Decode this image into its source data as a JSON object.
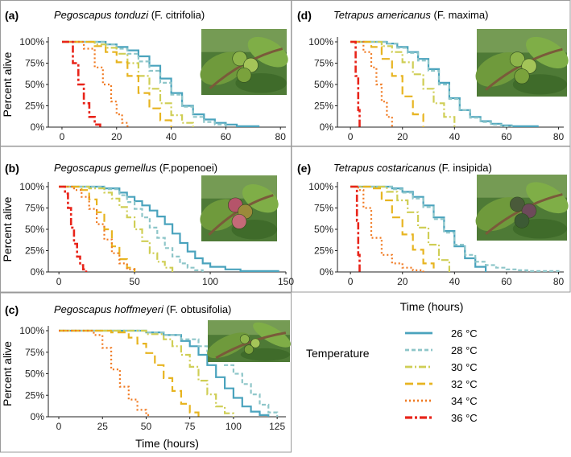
{
  "figure": {
    "legend_title": "Temperature",
    "colors": {
      "26": "#4aa3bd",
      "28": "#8ec6c9",
      "30": "#cfce55",
      "32": "#e7b420",
      "34": "#f07a22",
      "36": "#e8241a"
    }
  },
  "chart_data": [
    {
      "panel": "(a)",
      "type": "line",
      "species": "Pegoscapus tonduzi",
      "host": "(F. citrifolia)",
      "xlabel": "",
      "ylabel": "Percent alive",
      "xlim": [
        -5,
        82
      ],
      "ylim": [
        0,
        100
      ],
      "xticks": [
        0,
        20,
        40,
        60,
        80
      ],
      "yticks": [
        "0%",
        "25%",
        "50%",
        "75%",
        "100%"
      ],
      "photo": "fig-fruit-photo-a",
      "series": [
        {
          "name": "26 °C",
          "x": [
            0,
            12,
            16,
            20,
            24,
            28,
            32,
            36,
            40,
            44,
            48,
            52,
            56,
            60,
            64,
            68,
            72
          ],
          "y": [
            100,
            100,
            97,
            94,
            90,
            83,
            72,
            57,
            40,
            25,
            15,
            9,
            5,
            3,
            1,
            1,
            0
          ]
        },
        {
          "name": "28 °C",
          "x": [
            0,
            12,
            16,
            20,
            24,
            28,
            32,
            36,
            40,
            44,
            48,
            52,
            56,
            60
          ],
          "y": [
            100,
            100,
            97,
            92,
            86,
            77,
            66,
            52,
            38,
            24,
            12,
            6,
            3,
            0
          ]
        },
        {
          "name": "30 °C",
          "x": [
            0,
            8,
            12,
            16,
            20,
            24,
            28,
            32,
            36,
            40,
            44,
            48
          ],
          "y": [
            100,
            100,
            97,
            93,
            86,
            75,
            60,
            45,
            28,
            14,
            5,
            0
          ]
        },
        {
          "name": "32 °C",
          "x": [
            0,
            8,
            12,
            16,
            20,
            24,
            28,
            32,
            36,
            40
          ],
          "y": [
            100,
            100,
            95,
            88,
            76,
            60,
            40,
            22,
            8,
            0
          ]
        },
        {
          "name": "34 °C",
          "x": [
            0,
            5,
            8,
            12,
            15,
            18,
            20,
            22,
            24
          ],
          "y": [
            100,
            100,
            92,
            70,
            50,
            30,
            15,
            5,
            0
          ]
        },
        {
          "name": "36 °C",
          "x": [
            0,
            3,
            4,
            6,
            8,
            10,
            12,
            14
          ],
          "y": [
            100,
            100,
            75,
            50,
            28,
            12,
            3,
            0
          ]
        }
      ]
    },
    {
      "panel": "(b)",
      "type": "line",
      "species": "Pegoscapus gemellus",
      "host": "(F.popenoei)",
      "xlabel": "",
      "ylabel": "Percent alive",
      "xlim": [
        -7,
        150
      ],
      "ylim": [
        0,
        100
      ],
      "xticks": [
        0,
        50,
        100,
        150
      ],
      "yticks": [
        "0%",
        "25%",
        "50%",
        "75%",
        "100%"
      ],
      "photo": "fig-fruit-photo-b",
      "series": [
        {
          "name": "26 °C",
          "x": [
            0,
            20,
            30,
            40,
            45,
            50,
            55,
            60,
            65,
            70,
            75,
            80,
            85,
            90,
            95,
            100,
            110,
            120,
            145
          ],
          "y": [
            100,
            100,
            98,
            93,
            88,
            83,
            78,
            72,
            65,
            56,
            45,
            34,
            24,
            16,
            10,
            6,
            3,
            1,
            0
          ]
        },
        {
          "name": "28 °C",
          "x": [
            0,
            20,
            30,
            40,
            45,
            50,
            55,
            60,
            65,
            70,
            75,
            80,
            85,
            90,
            95
          ],
          "y": [
            100,
            100,
            97,
            90,
            82,
            74,
            64,
            52,
            40,
            28,
            18,
            10,
            5,
            2,
            0
          ]
        },
        {
          "name": "30 °C",
          "x": [
            0,
            20,
            30,
            35,
            40,
            45,
            50,
            55,
            60,
            65,
            70,
            75
          ],
          "y": [
            100,
            98,
            93,
            86,
            76,
            64,
            50,
            36,
            22,
            12,
            5,
            0
          ]
        },
        {
          "name": "32 °C",
          "x": [
            0,
            15,
            20,
            25,
            30,
            35,
            40,
            45,
            50
          ],
          "y": [
            100,
            96,
            85,
            70,
            50,
            30,
            15,
            5,
            0
          ]
        },
        {
          "name": "34 °C",
          "x": [
            0,
            10,
            15,
            20,
            25,
            30,
            35,
            40,
            45,
            50
          ],
          "y": [
            100,
            96,
            88,
            74,
            56,
            38,
            22,
            10,
            3,
            0
          ]
        },
        {
          "name": "36 °C",
          "x": [
            0,
            4,
            6,
            8,
            10,
            12,
            14,
            16,
            18
          ],
          "y": [
            100,
            92,
            75,
            52,
            33,
            18,
            8,
            3,
            0
          ]
        }
      ]
    },
    {
      "panel": "(c)",
      "type": "line",
      "species": "Pegoscapus hoffmeyeri",
      "host": "(F. obtusifolia)",
      "xlabel": "Time (hours)",
      "ylabel": "Percent alive",
      "xlim": [
        -6,
        130
      ],
      "ylim": [
        0,
        100
      ],
      "xticks": [
        0,
        25,
        50,
        75,
        100,
        125
      ],
      "yticks": [
        "0%",
        "25%",
        "50%",
        "75%",
        "100%"
      ],
      "photo": "fig-fruit-photo-c",
      "series": [
        {
          "name": "26 °C",
          "x": [
            0,
            40,
            50,
            60,
            70,
            75,
            80,
            85,
            90,
            95,
            100,
            105,
            110,
            115,
            120
          ],
          "y": [
            100,
            100,
            98,
            95,
            88,
            82,
            72,
            60,
            46,
            33,
            22,
            12,
            6,
            2,
            0
          ]
        },
        {
          "name": "28 °C",
          "x": [
            0,
            40,
            50,
            60,
            70,
            80,
            85,
            90,
            95,
            100,
            105,
            110,
            115,
            120,
            125
          ],
          "y": [
            100,
            100,
            98,
            95,
            90,
            82,
            76,
            68,
            60,
            50,
            38,
            26,
            14,
            5,
            0
          ]
        },
        {
          "name": "30 °C",
          "x": [
            0,
            40,
            50,
            60,
            65,
            70,
            75,
            80,
            85,
            90,
            95,
            100
          ],
          "y": [
            100,
            100,
            96,
            90,
            82,
            72,
            58,
            42,
            26,
            12,
            4,
            0
          ]
        },
        {
          "name": "32 °C",
          "x": [
            0,
            30,
            40,
            45,
            50,
            55,
            60,
            65,
            70,
            75,
            80
          ],
          "y": [
            100,
            98,
            92,
            85,
            74,
            60,
            45,
            30,
            15,
            5,
            0
          ]
        },
        {
          "name": "34 °C",
          "x": [
            0,
            20,
            25,
            30,
            35,
            40,
            45,
            50,
            52
          ],
          "y": [
            100,
            95,
            80,
            55,
            35,
            20,
            8,
            2,
            0
          ]
        }
      ]
    },
    {
      "panel": "(d)",
      "type": "line",
      "species": "Tetrapus americanus",
      "host": "(F. maxima)",
      "xlabel": "",
      "ylabel": "",
      "xlim": [
        -5,
        82
      ],
      "ylim": [
        0,
        100
      ],
      "xticks": [
        0,
        20,
        40,
        60,
        80
      ],
      "yticks": [
        "0%",
        "25%",
        "50%",
        "75%",
        "100%"
      ],
      "photo": "fig-fruit-photo-d",
      "series": [
        {
          "name": "26 °C",
          "x": [
            0,
            10,
            14,
            18,
            22,
            26,
            30,
            34,
            38,
            42,
            46,
            50,
            54,
            58,
            62,
            66,
            70,
            72
          ],
          "y": [
            100,
            100,
            98,
            94,
            88,
            80,
            68,
            52,
            34,
            20,
            12,
            7,
            4,
            2,
            1,
            1,
            1,
            0
          ]
        },
        {
          "name": "28 °C",
          "x": [
            0,
            10,
            14,
            18,
            22,
            26,
            30,
            34,
            38,
            42,
            46,
            50,
            54,
            58,
            62
          ],
          "y": [
            100,
            100,
            98,
            93,
            87,
            78,
            66,
            50,
            33,
            20,
            11,
            6,
            3,
            1,
            0
          ]
        },
        {
          "name": "30 °C",
          "x": [
            0,
            8,
            12,
            16,
            20,
            24,
            28,
            32,
            36,
            40
          ],
          "y": [
            100,
            100,
            95,
            88,
            76,
            62,
            45,
            28,
            12,
            0
          ]
        },
        {
          "name": "32 °C",
          "x": [
            0,
            5,
            8,
            12,
            16,
            20,
            24,
            28
          ],
          "y": [
            100,
            100,
            94,
            80,
            60,
            36,
            15,
            0
          ]
        },
        {
          "name": "34 °C",
          "x": [
            0,
            3,
            5,
            8,
            10,
            12,
            14,
            16
          ],
          "y": [
            100,
            100,
            88,
            70,
            50,
            30,
            12,
            0
          ]
        },
        {
          "name": "36 °C",
          "x": [
            0,
            1.5,
            2,
            3,
            3.5
          ],
          "y": [
            100,
            100,
            60,
            20,
            0
          ]
        }
      ]
    },
    {
      "panel": "(e)",
      "type": "line",
      "species": "Tetrapus costaricanus",
      "host": "(F. insipida)",
      "xlabel": "",
      "ylabel": "",
      "xlim": [
        -5,
        82
      ],
      "ylim": [
        0,
        100
      ],
      "xticks": [
        0,
        20,
        40,
        60,
        80
      ],
      "yticks": [
        "0%",
        "25%",
        "50%",
        "75%",
        "100%"
      ],
      "photo": "fig-fruit-photo-e",
      "series": [
        {
          "name": "26 °C",
          "x": [
            0,
            12,
            16,
            20,
            24,
            28,
            32,
            36,
            40,
            44,
            48,
            52
          ],
          "y": [
            100,
            100,
            98,
            94,
            88,
            78,
            64,
            48,
            30,
            16,
            6,
            0
          ]
        },
        {
          "name": "28 °C",
          "x": [
            0,
            12,
            16,
            20,
            24,
            28,
            32,
            36,
            40,
            44,
            48,
            52,
            56,
            60,
            64,
            68,
            72,
            76,
            80
          ],
          "y": [
            100,
            100,
            97,
            93,
            86,
            76,
            62,
            46,
            32,
            20,
            12,
            8,
            5,
            3,
            2,
            1,
            1,
            1,
            0
          ]
        },
        {
          "name": "30 °C",
          "x": [
            0,
            10,
            14,
            18,
            22,
            26,
            30,
            34,
            38
          ],
          "y": [
            100,
            100,
            94,
            84,
            70,
            52,
            32,
            14,
            0
          ]
        },
        {
          "name": "32 °C",
          "x": [
            0,
            8,
            12,
            16,
            20,
            24,
            28,
            32
          ],
          "y": [
            100,
            98,
            84,
            64,
            44,
            26,
            10,
            0
          ]
        },
        {
          "name": "34 °C",
          "x": [
            0,
            3,
            5,
            8,
            12,
            16,
            20,
            24,
            28
          ],
          "y": [
            100,
            96,
            75,
            40,
            20,
            10,
            5,
            2,
            0
          ]
        },
        {
          "name": "36 °C",
          "x": [
            0,
            2,
            2.5,
            3,
            3.5
          ],
          "y": [
            100,
            100,
            60,
            20,
            0
          ]
        }
      ]
    }
  ]
}
